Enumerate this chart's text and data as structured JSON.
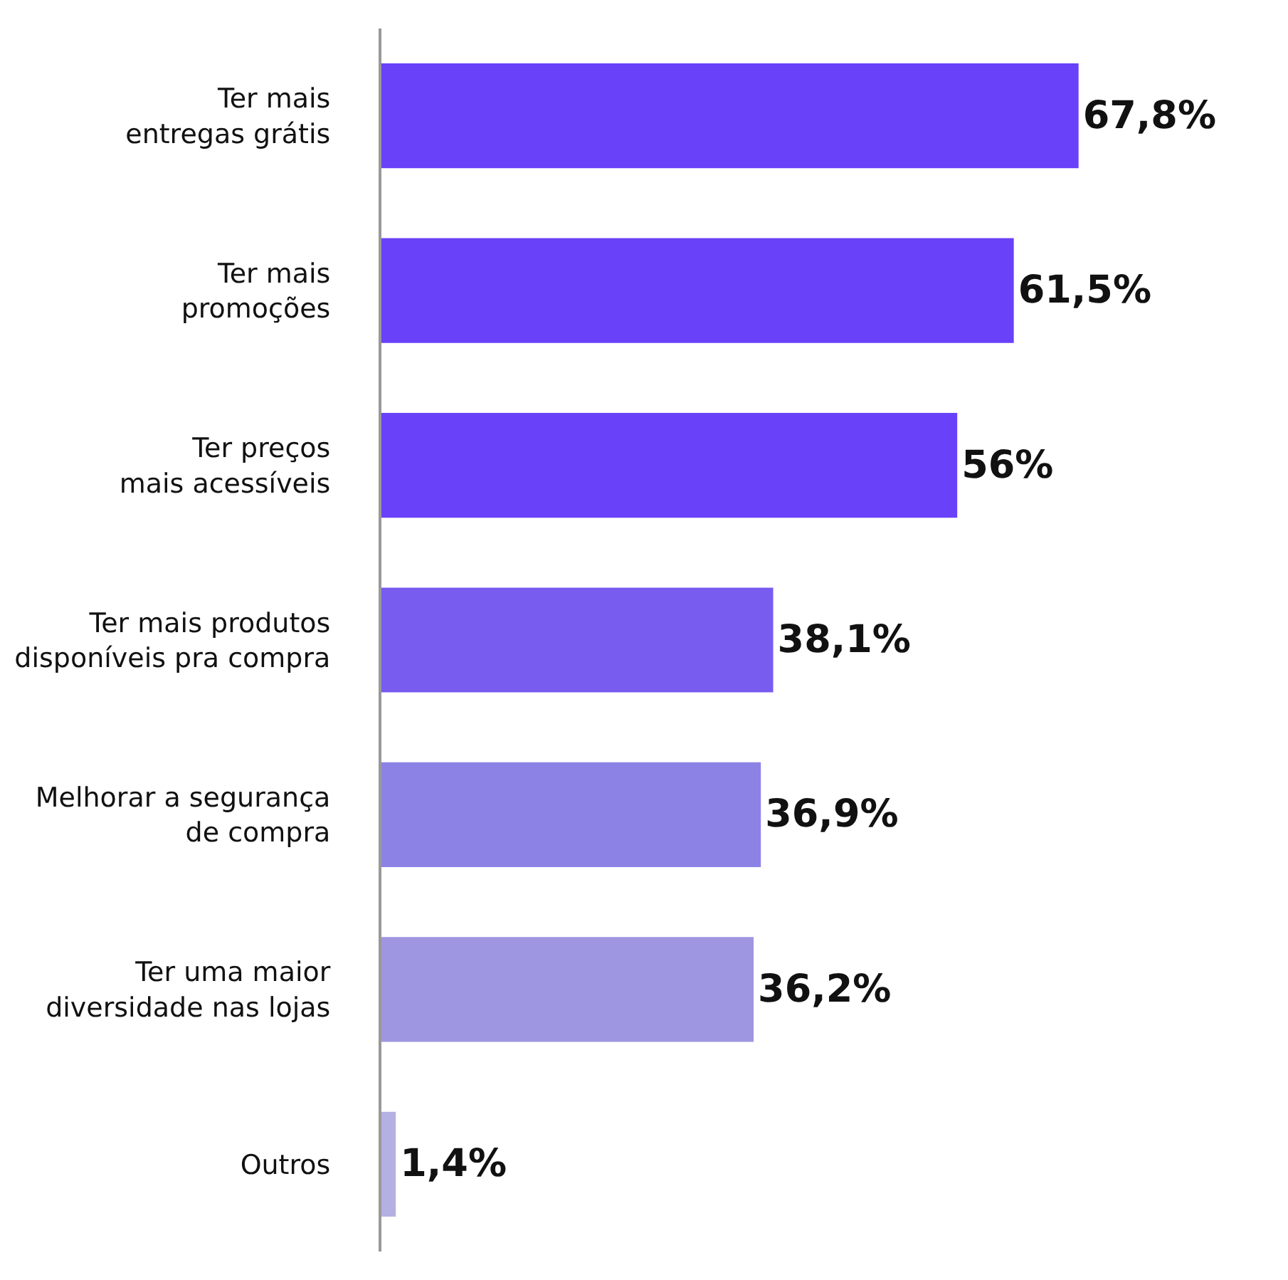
{
  "chart_data": {
    "type": "bar",
    "orientation": "horizontal",
    "categories": [
      "Ter mais\nentregas grátis",
      "Ter mais\npromoções",
      "Ter preços\nmais acessíveis",
      "Ter mais produtos\ndisponíveis pra compra",
      "Melhorar a segurança\nde compra",
      "Ter uma maior\ndiversidade nas lojas",
      "Outros"
    ],
    "values": [
      67.8,
      61.5,
      56,
      38.1,
      36.9,
      36.2,
      1.4
    ],
    "colors": [
      "#6841f9",
      "#6841f9",
      "#6841f9",
      "#785cf0",
      "#8c82e6",
      "#9e96e0",
      "#b5b0e2"
    ],
    "value_labels": [
      "67,8%",
      "61,5%",
      "56%",
      "38,1%",
      "36,9%",
      "36,2%",
      "1,4%"
    ],
    "tick_labels": "y"
  }
}
